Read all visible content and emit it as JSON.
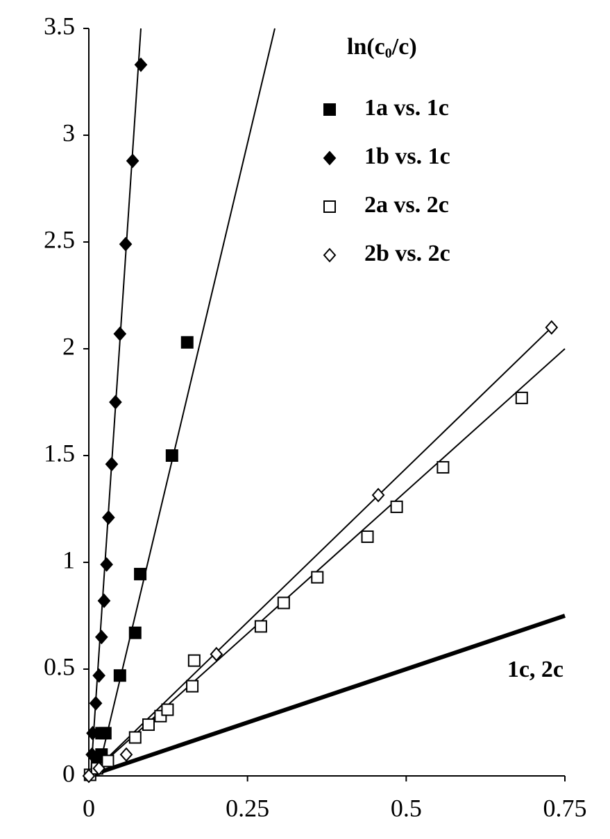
{
  "chart_data": {
    "type": "scatter",
    "legend_title": {
      "text": "ln(c",
      "subscript": "0",
      "suffix": "/c)"
    },
    "annotation": "1c, 2c",
    "xlim": [
      0,
      0.75
    ],
    "xticks": [
      0,
      0.25,
      0.5,
      0.75
    ],
    "ylim": [
      0,
      3.5
    ],
    "yticks": [
      0,
      0.5,
      1,
      1.5,
      2,
      2.5,
      3,
      3.5
    ],
    "legend": "upper right",
    "series": [
      {
        "name": "1a vs. 1c",
        "color": "#000000",
        "marker": "square",
        "filled": true,
        "x": [
          0.013,
          0.02,
          0.02,
          0.026,
          0.049,
          0.073,
          0.081,
          0.131,
          0.155
        ],
        "values": [
          0.06,
          0.1,
          0.2,
          0.2,
          0.47,
          0.67,
          0.945,
          1.5,
          2.03
        ]
      },
      {
        "name": "1b vs. 1c",
        "color": "#000000",
        "marker": "diamond",
        "filled": true,
        "x": [
          0.005,
          0.006,
          0.011,
          0.016,
          0.02,
          0.024,
          0.028,
          0.031,
          0.036,
          0.042,
          0.049,
          0.058,
          0.069,
          0.082
        ],
        "values": [
          0.1,
          0.2,
          0.34,
          0.47,
          0.65,
          0.82,
          0.99,
          1.21,
          1.46,
          1.75,
          2.07,
          2.49,
          2.88,
          3.33
        ]
      },
      {
        "name": "2a vs. 2c",
        "color": "#000000",
        "marker": "square",
        "filled": false,
        "x": [
          0.002,
          0.013,
          0.03,
          0.073,
          0.094,
          0.113,
          0.124,
          0.163,
          0.166,
          0.271,
          0.307,
          0.36,
          0.439,
          0.485,
          0.558,
          0.682
        ],
        "values": [
          0.005,
          0.035,
          0.07,
          0.18,
          0.24,
          0.28,
          0.31,
          0.42,
          0.54,
          0.7,
          0.81,
          0.93,
          1.12,
          1.26,
          1.445,
          1.77
        ]
      },
      {
        "name": "2b vs. 2c",
        "color": "#000000",
        "marker": "diamond",
        "filled": false,
        "x": [
          0,
          0.016,
          0.059,
          0.201,
          0.456,
          0.729
        ],
        "values": [
          0,
          0.035,
          0.1,
          0.57,
          1.315,
          2.1
        ]
      }
    ],
    "fit_lines": [
      {
        "color": "#000000",
        "width": 2,
        "x": [
          0.013,
          0.293
        ],
        "values": [
          0,
          3.5
        ]
      },
      {
        "color": "#000000",
        "width": 2,
        "x": [
          0.003,
          0.082
        ],
        "values": [
          0,
          3.5
        ]
      },
      {
        "color": "#000000",
        "width": 2,
        "x": [
          0,
          0.75
        ],
        "values": [
          0,
          2
        ]
      },
      {
        "color": "#000000",
        "width": 2,
        "x": [
          0,
          0.729
        ],
        "values": [
          0,
          2.1
        ]
      },
      {
        "color": "#000000",
        "width": 6,
        "x": [
          0,
          0.75
        ],
        "values": [
          0,
          0.75
        ]
      }
    ]
  }
}
